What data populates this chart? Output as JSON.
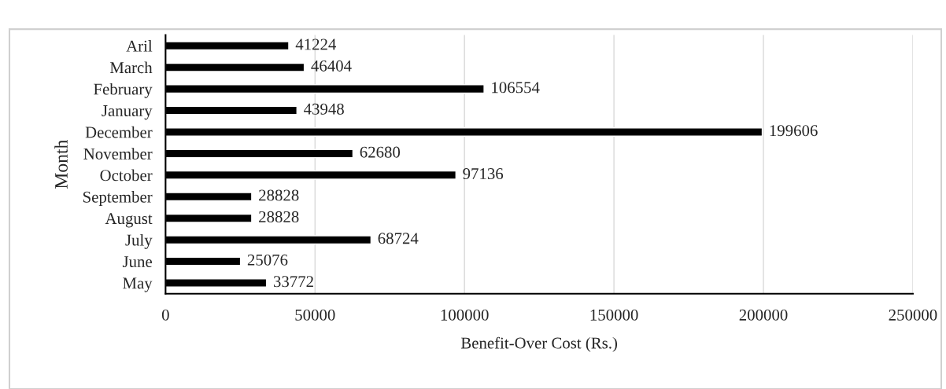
{
  "chart_data": {
    "type": "bar",
    "orientation": "horizontal",
    "categories": [
      "Aril",
      "March",
      "February",
      "January",
      "December",
      "November",
      "October",
      "September",
      "August",
      "July",
      "June",
      "May"
    ],
    "values": [
      41224,
      46404,
      106554,
      43948,
      199606,
      62680,
      97136,
      28828,
      28828,
      68724,
      25076,
      33772
    ],
    "color": "#000000",
    "data_labels": true,
    "xlim": [
      0,
      250000
    ],
    "xticks": [
      0,
      50000,
      100000,
      150000,
      200000,
      250000
    ],
    "xlabel": "Benefit-Over Cost (Rs.)",
    "ylabel": "Month",
    "grid": "x",
    "legend": false
  }
}
